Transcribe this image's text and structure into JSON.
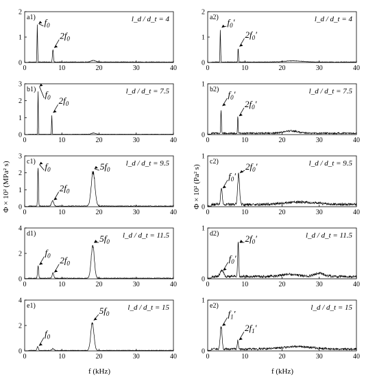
{
  "chart_data": {
    "type": "line",
    "layout": "5 rows x 2 columns of small spectrum panels",
    "xlabel": "f (kHz)",
    "ylabel_left": "Φ × 10² (MPa² s)",
    "ylabel_right": "Φ × 10² (Pa² s)",
    "xlim": [
      0,
      40
    ],
    "xticks": [
      "0",
      "10",
      "20",
      "30",
      "40"
    ],
    "grid": false,
    "panels": [
      {
        "id": "a1",
        "label": "a1)",
        "condition": "l_d / d_t = 4",
        "ylim": [
          0,
          2
        ],
        "yticks": [
          "0",
          "1",
          "2"
        ],
        "peaks": [
          {
            "x": 3.4,
            "y": 1.5,
            "w": 0.12
          },
          {
            "x": 7.6,
            "y": 0.55,
            "w": 0.18
          },
          {
            "x": 18.5,
            "y": 0.07,
            "w": 0.8
          }
        ],
        "noise": 0.02,
        "annotations": [
          {
            "text": "f0",
            "x": 3.4,
            "y": 1.5
          },
          {
            "text": "2f0",
            "x": 7.6,
            "y": 0.55
          }
        ]
      },
      {
        "id": "a2",
        "label": "a2)",
        "condition": "l_d / d_t = 4",
        "ylim": [
          0,
          2
        ],
        "yticks": [
          "0",
          "1",
          "2"
        ],
        "peaks": [
          {
            "x": 3.4,
            "y": 1.35,
            "w": 0.12
          },
          {
            "x": 8.2,
            "y": 0.6,
            "w": 0.12
          },
          {
            "x": 23.0,
            "y": 0.05,
            "w": 3.5
          }
        ],
        "noise": 0.02,
        "annotations": [
          {
            "text": "f0′",
            "x": 3.4,
            "y": 1.35
          },
          {
            "text": "2f0′",
            "x": 8.2,
            "y": 0.6
          }
        ]
      },
      {
        "id": "b1",
        "label": "b1)",
        "condition": "l_d / d_t = 7.5",
        "ylim": [
          0,
          3
        ],
        "yticks": [
          "0",
          "1",
          "2",
          "3"
        ],
        "peaks": [
          {
            "x": 3.6,
            "y": 2.8,
            "w": 0.1
          },
          {
            "x": 7.3,
            "y": 1.25,
            "w": 0.1
          },
          {
            "x": 18.5,
            "y": 0.08,
            "w": 0.8
          }
        ],
        "noise": 0.02,
        "annotations": [
          {
            "text": "f0",
            "x": 3.6,
            "y": 2.8
          },
          {
            "text": "2f0",
            "x": 7.3,
            "y": 1.25
          }
        ]
      },
      {
        "id": "b2",
        "label": "b2)",
        "condition": "l_d / d_t = 7.5",
        "ylim": [
          0,
          1
        ],
        "yticks": [
          "0",
          "1"
        ],
        "peaks": [
          {
            "x": 3.6,
            "y": 0.55,
            "w": 0.12
          },
          {
            "x": 8.1,
            "y": 0.35,
            "w": 0.12
          },
          {
            "x": 22.5,
            "y": 0.05,
            "w": 2.5
          }
        ],
        "noise": 0.03,
        "annotations": [
          {
            "text": "f0′",
            "x": 3.6,
            "y": 0.55
          },
          {
            "text": "2f0′",
            "x": 8.1,
            "y": 0.35
          }
        ]
      },
      {
        "id": "c1",
        "label": "c1)",
        "condition": "l_d / d_t = 9.5",
        "ylim": [
          0,
          3
        ],
        "yticks": [
          "0",
          "1",
          "2",
          "3"
        ],
        "peaks": [
          {
            "x": 3.6,
            "y": 2.45,
            "w": 0.15
          },
          {
            "x": 7.5,
            "y": 0.35,
            "w": 0.4
          },
          {
            "x": 18.4,
            "y": 2.2,
            "w": 0.7
          }
        ],
        "noise": 0.04,
        "annotations": [
          {
            "text": "f0",
            "x": 3.6,
            "y": 2.45
          },
          {
            "text": "2f0",
            "x": 7.5,
            "y": 0.35
          },
          {
            "text": "5f0",
            "x": 18.4,
            "y": 2.2
          }
        ]
      },
      {
        "id": "c2",
        "label": "c2)",
        "condition": "l_d / d_t = 9.5",
        "ylim": [
          0,
          1
        ],
        "yticks": [
          "0",
          "1"
        ],
        "peaks": [
          {
            "x": 3.7,
            "y": 0.35,
            "w": 0.3
          },
          {
            "x": 8.3,
            "y": 0.65,
            "w": 0.35
          },
          {
            "x": 25.0,
            "y": 0.05,
            "w": 6.0
          }
        ],
        "noise": 0.05,
        "annotations": [
          {
            "text": "f0′",
            "x": 3.7,
            "y": 0.35
          },
          {
            "text": "2f0′",
            "x": 8.3,
            "y": 0.65
          }
        ]
      },
      {
        "id": "d1",
        "label": "d1)",
        "condition": "l_d / d_t = 11.5",
        "ylim": [
          0,
          4
        ],
        "yticks": [
          "0",
          "2",
          "4"
        ],
        "peaks": [
          {
            "x": 3.6,
            "y": 1.05,
            "w": 0.2
          },
          {
            "x": 7.6,
            "y": 0.45,
            "w": 0.3
          },
          {
            "x": 18.3,
            "y": 2.8,
            "w": 0.6
          }
        ],
        "noise": 0.05,
        "annotations": [
          {
            "text": "f0",
            "x": 3.6,
            "y": 1.05
          },
          {
            "text": "2f0",
            "x": 7.6,
            "y": 0.45
          },
          {
            "text": "5f0",
            "x": 18.3,
            "y": 2.8
          }
        ]
      },
      {
        "id": "d2",
        "label": "d2)",
        "condition": "l_d / d_t = 11.5",
        "ylim": [
          0,
          1
        ],
        "yticks": [
          "0",
          "1"
        ],
        "peaks": [
          {
            "x": 3.8,
            "y": 0.15,
            "w": 0.6
          },
          {
            "x": 8.2,
            "y": 0.7,
            "w": 0.2
          },
          {
            "x": 30.0,
            "y": 0.06,
            "w": 2.0
          },
          {
            "x": 22.0,
            "y": 0.05,
            "w": 3.0
          }
        ],
        "noise": 0.05,
        "annotations": [
          {
            "text": "f0′",
            "x": 3.8,
            "y": 0.15
          },
          {
            "text": "2f0′",
            "x": 8.2,
            "y": 0.7
          }
        ]
      },
      {
        "id": "e1",
        "label": "e1)",
        "condition": "l_d / d_t = 15",
        "ylim": [
          0,
          4
        ],
        "yticks": [
          "0",
          "2",
          "4"
        ],
        "peaks": [
          {
            "x": 3.5,
            "y": 0.35,
            "w": 0.25
          },
          {
            "x": 7.6,
            "y": 0.15,
            "w": 0.4
          },
          {
            "x": 18.2,
            "y": 2.35,
            "w": 0.6
          }
        ],
        "noise": 0.04,
        "annotations": [
          {
            "text": "f0",
            "x": 3.5,
            "y": 0.35
          },
          {
            "text": "5f0",
            "x": 18.2,
            "y": 2.35
          }
        ]
      },
      {
        "id": "e2",
        "label": "e2)",
        "condition": "l_d / d_t = 15",
        "ylim": [
          0,
          1
        ],
        "yticks": [
          "0",
          "1"
        ],
        "peaks": [
          {
            "x": 3.6,
            "y": 0.48,
            "w": 0.35
          },
          {
            "x": 8.1,
            "y": 0.2,
            "w": 0.2
          },
          {
            "x": 24.0,
            "y": 0.05,
            "w": 6.0
          }
        ],
        "noise": 0.04,
        "annotations": [
          {
            "text": "f1′",
            "x": 3.6,
            "y": 0.48
          },
          {
            "text": "2f1′",
            "x": 8.1,
            "y": 0.2
          }
        ]
      }
    ]
  }
}
